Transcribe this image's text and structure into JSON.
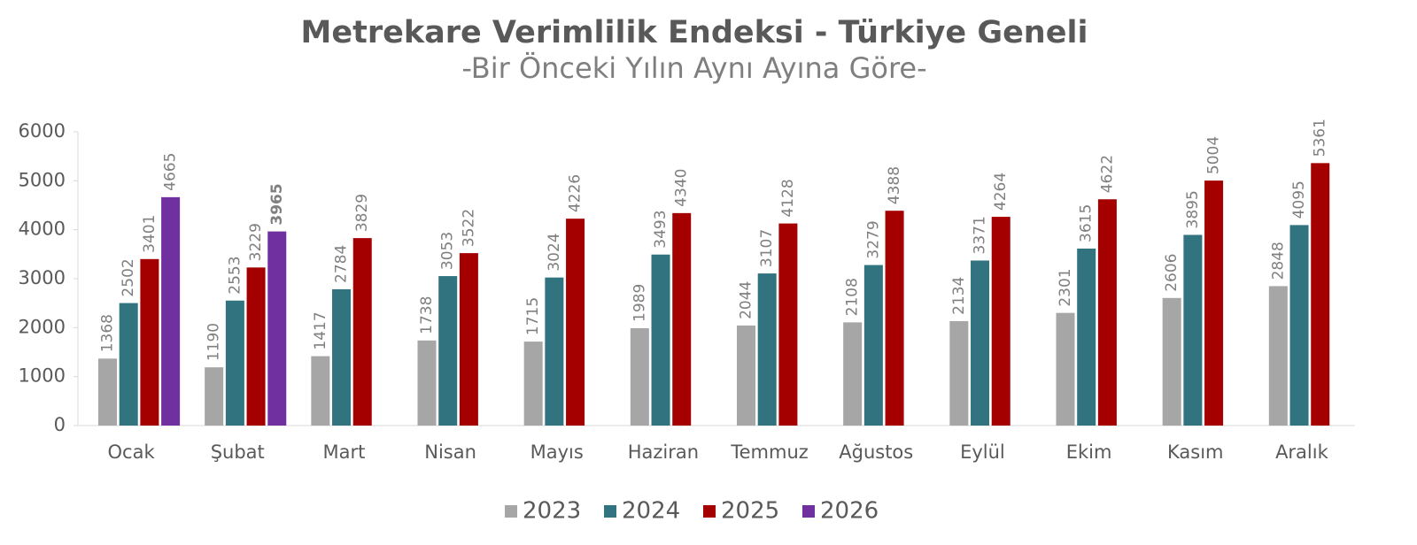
{
  "chart_data": {
    "type": "bar",
    "title": "Metrekare Verimlilik Endeksi - Türkiye Geneli",
    "subtitle": "-Bir Önceki Yılın Aynı Ayına Göre-",
    "categories": [
      "Ocak",
      "Şubat",
      "Mart",
      "Nisan",
      "Mayıs",
      "Haziran",
      "Temmuz",
      "Ağustos",
      "Eylül",
      "Ekim",
      "Kasım",
      "Aralık"
    ],
    "series": [
      {
        "name": "2023",
        "color": "#a6a6a6",
        "values": [
          1368,
          1190,
          1417,
          1738,
          1715,
          1989,
          2044,
          2108,
          2134,
          2301,
          2606,
          2848
        ]
      },
      {
        "name": "2024",
        "color": "#31737f",
        "values": [
          2502,
          2553,
          2784,
          3053,
          3024,
          3493,
          3107,
          3279,
          3371,
          3615,
          3895,
          4095
        ]
      },
      {
        "name": "2025",
        "color": "#a50000",
        "values": [
          3401,
          3229,
          3829,
          3522,
          4226,
          4340,
          4128,
          4388,
          4264,
          4622,
          5004,
          5361
        ]
      },
      {
        "name": "2026",
        "color": "#7030a0",
        "values": [
          4665,
          3965,
          null,
          null,
          null,
          null,
          null,
          null,
          null,
          null,
          null,
          null
        ]
      }
    ],
    "highlight": {
      "series": 3,
      "index": 1
    },
    "ylim": [
      0,
      6000
    ],
    "yticks": [
      0,
      1000,
      2000,
      3000,
      4000,
      5000,
      6000
    ],
    "legend": "bottom"
  }
}
